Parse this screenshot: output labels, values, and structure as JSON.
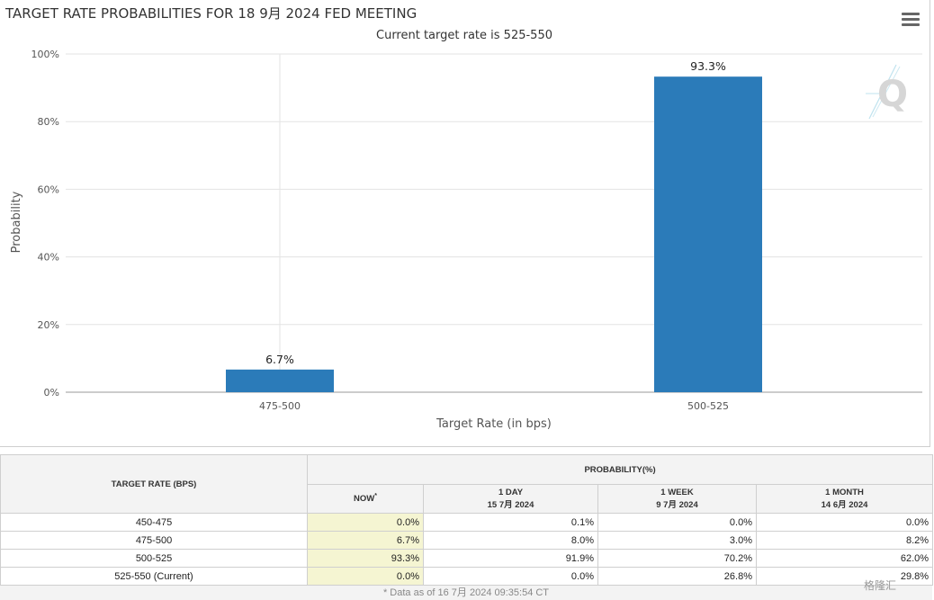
{
  "header": {
    "title": "TARGET RATE PROBABILITIES FOR 18 9月 2024 FED MEETING",
    "subtitle": "Current target rate is 525-550"
  },
  "chart_data": {
    "type": "bar",
    "categories": [
      "475-500",
      "500-525"
    ],
    "values": [
      6.7,
      93.3
    ],
    "data_labels": [
      "6.7%",
      "93.3%"
    ],
    "title": "TARGET RATE PROBABILITIES FOR 18 9月 2024 FED MEETING",
    "subtitle": "Current target rate is 525-550",
    "xlabel": "Target Rate (in bps)",
    "ylabel": "Probability",
    "ylim": [
      0,
      100
    ],
    "yticks": [
      "0%",
      "20%",
      "40%",
      "60%",
      "80%",
      "100%"
    ],
    "ytick_values": [
      0,
      20,
      40,
      60,
      80,
      100
    ],
    "grid": true,
    "bar_color": "#2b7bb9"
  },
  "table": {
    "rate_header": "TARGET RATE (BPS)",
    "prob_header": "PROBABILITY(%)",
    "col_now": "NOW",
    "col_now_marker": "*",
    "col_1day": "1 DAY",
    "col_1day_date": "15 7月 2024",
    "col_1week": "1 WEEK",
    "col_1week_date": "9 7月 2024",
    "col_1month": "1 MONTH",
    "col_1month_date": "14 6月 2024",
    "rows": [
      {
        "rate": "450-475",
        "now": "0.0%",
        "day": "0.1%",
        "week": "0.0%",
        "month": "0.0%"
      },
      {
        "rate": "475-500",
        "now": "6.7%",
        "day": "8.0%",
        "week": "3.0%",
        "month": "8.2%"
      },
      {
        "rate": "500-525",
        "now": "93.3%",
        "day": "91.9%",
        "week": "70.2%",
        "month": "62.0%"
      },
      {
        "rate": "525-550 (Current)",
        "now": "0.0%",
        "day": "0.0%",
        "week": "26.8%",
        "month": "29.8%"
      }
    ],
    "footnote": "* Data as of 16 7月 2024 09:35:54 CT"
  },
  "watermark": {
    "logo_letter": "Q",
    "corner_text": "格隆汇"
  },
  "icons": {
    "menu": "hamburger-menu-icon"
  }
}
